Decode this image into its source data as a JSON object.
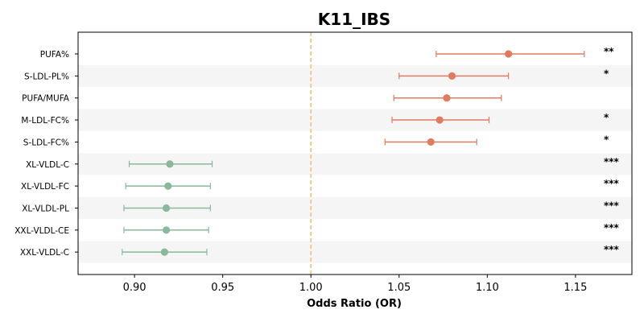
{
  "chart_data": {
    "type": "forest",
    "title": "K11_IBS",
    "xlabel": "Odds Ratio (OR)",
    "xlim": [
      0.868,
      1.182
    ],
    "xticks": [
      "0.90",
      "0.95",
      "1.00",
      "1.05",
      "1.10",
      "1.15"
    ],
    "reference_line": 1.0,
    "colors": {
      "increase": "#e07b60",
      "decrease": "#8ab89a",
      "reference": "#f2c46d",
      "stripe": "#f5f5f5"
    },
    "rows": [
      {
        "label": "PUFA%",
        "or": 1.112,
        "lower": 1.071,
        "upper": 1.155,
        "sig": "**",
        "direction": "increase"
      },
      {
        "label": "S-LDL-PL%",
        "or": 1.08,
        "lower": 1.05,
        "upper": 1.112,
        "sig": "*",
        "direction": "increase"
      },
      {
        "label": "PUFA/MUFA",
        "or": 1.077,
        "lower": 1.047,
        "upper": 1.108,
        "sig": "",
        "direction": "increase"
      },
      {
        "label": "M-LDL-FC%",
        "or": 1.073,
        "lower": 1.046,
        "upper": 1.101,
        "sig": "*",
        "direction": "increase"
      },
      {
        "label": "S-LDL-FC%",
        "or": 1.068,
        "lower": 1.042,
        "upper": 1.094,
        "sig": "*",
        "direction": "increase"
      },
      {
        "label": "XL-VLDL-C",
        "or": 0.92,
        "lower": 0.897,
        "upper": 0.944,
        "sig": "***",
        "direction": "decrease"
      },
      {
        "label": "XL-VLDL-FC",
        "or": 0.919,
        "lower": 0.895,
        "upper": 0.943,
        "sig": "***",
        "direction": "decrease"
      },
      {
        "label": "XL-VLDL-PL",
        "or": 0.918,
        "lower": 0.894,
        "upper": 0.943,
        "sig": "***",
        "direction": "decrease"
      },
      {
        "label": "XXL-VLDL-CE",
        "or": 0.918,
        "lower": 0.894,
        "upper": 0.942,
        "sig": "***",
        "direction": "decrease"
      },
      {
        "label": "XXL-VLDL-C",
        "or": 0.917,
        "lower": 0.893,
        "upper": 0.941,
        "sig": "***",
        "direction": "decrease"
      }
    ]
  }
}
